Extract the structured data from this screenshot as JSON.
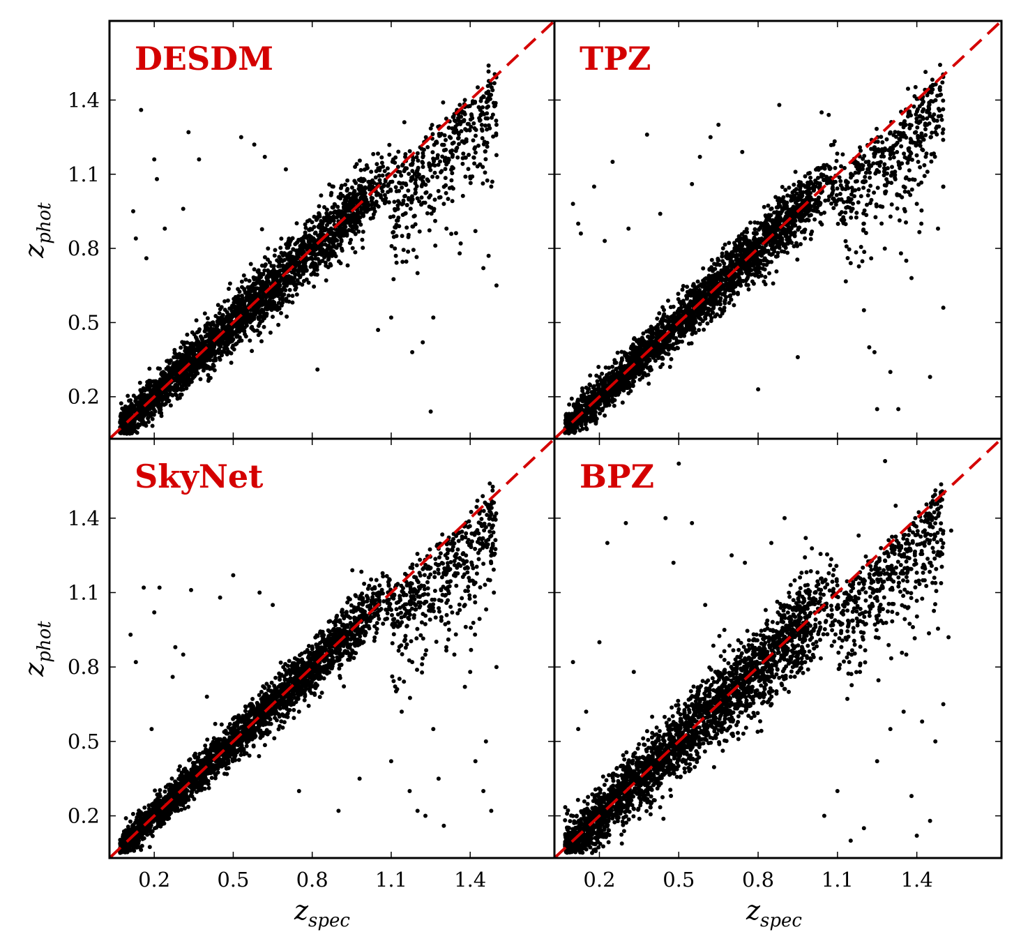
{
  "colors": {
    "points": "#000000",
    "identity_line": "#d40000",
    "title": "#d40000",
    "frame": "#000000"
  },
  "chart_data": [
    {
      "type": "scatter",
      "title": "DESDM",
      "xlabel": "z_spec",
      "ylabel": "z_phot",
      "xlim": [
        0.03,
        1.72
      ],
      "ylim": [
        0.03,
        1.72
      ],
      "xticks": [
        "0.2",
        "0.5",
        "0.8",
        "1.1",
        "1.4"
      ],
      "yticks": [
        "0.2",
        "0.5",
        "0.8",
        "1.1",
        "1.4"
      ],
      "show_xticklabels": false,
      "show_yticklabels": true,
      "show_xlabel": false,
      "show_ylabel": true,
      "reference_line": "y = x (dashed)",
      "points": {
        "scatter_sigma": 0.055,
        "count": 3200,
        "zmax": 1.5,
        "outliers": [
          [
            0.12,
            0.95
          ],
          [
            0.13,
            0.84
          ],
          [
            0.15,
            1.36
          ],
          [
            0.17,
            0.76
          ],
          [
            0.2,
            1.16
          ],
          [
            0.21,
            1.08
          ],
          [
            0.24,
            0.88
          ],
          [
            0.31,
            0.96
          ],
          [
            0.33,
            1.27
          ],
          [
            0.37,
            1.16
          ],
          [
            0.45,
            0.35
          ],
          [
            0.53,
            1.25
          ],
          [
            0.58,
            1.22
          ],
          [
            0.62,
            1.17
          ],
          [
            0.7,
            1.12
          ],
          [
            0.82,
            0.31
          ],
          [
            0.88,
            1.05
          ],
          [
            1.05,
            0.47
          ],
          [
            1.1,
            0.52
          ],
          [
            1.15,
            1.31
          ],
          [
            1.18,
            0.38
          ],
          [
            1.22,
            0.42
          ],
          [
            1.25,
            0.14
          ],
          [
            1.26,
            0.52
          ],
          [
            1.3,
            0.98
          ],
          [
            1.35,
            1.36
          ],
          [
            1.38,
            1.4
          ],
          [
            1.42,
            0.87
          ],
          [
            1.45,
            0.72
          ],
          [
            1.47,
            0.77
          ],
          [
            1.48,
            1.05
          ],
          [
            1.5,
            0.65
          ],
          [
            1.36,
            0.78
          ],
          [
            1.31,
            0.88
          ],
          [
            1.44,
            1.34
          ],
          [
            1.5,
            1.3
          ],
          [
            1.2,
            0.7
          ],
          [
            1.12,
            0.85
          ],
          [
            1.4,
            1.09
          ],
          [
            1.27,
            1.23
          ]
        ]
      }
    },
    {
      "type": "scatter",
      "title": "TPZ",
      "xlabel": "z_spec",
      "ylabel": "z_phot",
      "xlim": [
        0.03,
        1.72
      ],
      "ylim": [
        0.03,
        1.72
      ],
      "xticks": [
        "0.2",
        "0.5",
        "0.8",
        "1.1",
        "1.4"
      ],
      "yticks": [
        "0.2",
        "0.5",
        "0.8",
        "1.1",
        "1.4"
      ],
      "show_xticklabels": false,
      "show_yticklabels": false,
      "show_xlabel": false,
      "show_ylabel": false,
      "reference_line": "y = x (dashed)",
      "points": {
        "scatter_sigma": 0.05,
        "count": 3200,
        "zmax": 1.5,
        "outliers": [
          [
            0.1,
            0.98
          ],
          [
            0.12,
            0.9
          ],
          [
            0.13,
            0.86
          ],
          [
            0.18,
            1.05
          ],
          [
            0.22,
            0.83
          ],
          [
            0.25,
            1.15
          ],
          [
            0.31,
            0.88
          ],
          [
            0.38,
            1.26
          ],
          [
            0.43,
            0.94
          ],
          [
            0.55,
            1.06
          ],
          [
            0.58,
            1.17
          ],
          [
            0.62,
            1.25
          ],
          [
            0.65,
            1.3
          ],
          [
            0.74,
            1.19
          ],
          [
            0.8,
            0.23
          ],
          [
            0.88,
            1.38
          ],
          [
            0.95,
            0.36
          ],
          [
            1.04,
            1.35
          ],
          [
            1.12,
            1.18
          ],
          [
            1.15,
            0.74
          ],
          [
            1.2,
            0.55
          ],
          [
            1.22,
            0.4
          ],
          [
            1.24,
            0.38
          ],
          [
            1.25,
            0.15
          ],
          [
            1.3,
            0.3
          ],
          [
            1.33,
            0.15
          ],
          [
            1.36,
            0.75
          ],
          [
            1.38,
            0.68
          ],
          [
            1.45,
            0.28
          ],
          [
            1.47,
            1.27
          ],
          [
            1.48,
            0.88
          ],
          [
            1.5,
            0.56
          ],
          [
            1.5,
            1.05
          ],
          [
            1.42,
            1.2
          ],
          [
            1.35,
            1.05
          ],
          [
            1.28,
            1.12
          ],
          [
            1.2,
            0.9
          ],
          [
            1.4,
            0.98
          ],
          [
            1.34,
            0.78
          ],
          [
            1.44,
            1.11
          ]
        ]
      }
    },
    {
      "type": "scatter",
      "title": "SkyNet",
      "xlabel": "z_spec",
      "ylabel": "z_phot",
      "xlim": [
        0.03,
        1.72
      ],
      "ylim": [
        0.03,
        1.72
      ],
      "xticks": [
        "0.2",
        "0.5",
        "0.8",
        "1.1",
        "1.4"
      ],
      "yticks": [
        "0.2",
        "0.5",
        "0.8",
        "1.1",
        "1.4"
      ],
      "show_xticklabels": true,
      "show_yticklabels": true,
      "show_xlabel": true,
      "show_ylabel": true,
      "reference_line": "y = x (dashed)",
      "points": {
        "scatter_sigma": 0.045,
        "count": 3200,
        "zmax": 1.5,
        "outliers": [
          [
            0.11,
            0.93
          ],
          [
            0.13,
            0.82
          ],
          [
            0.16,
            1.12
          ],
          [
            0.19,
            0.55
          ],
          [
            0.2,
            1.02
          ],
          [
            0.22,
            1.12
          ],
          [
            0.27,
            0.76
          ],
          [
            0.28,
            0.88
          ],
          [
            0.31,
            0.85
          ],
          [
            0.34,
            1.11
          ],
          [
            0.4,
            0.68
          ],
          [
            0.45,
            1.08
          ],
          [
            0.5,
            1.17
          ],
          [
            0.6,
            1.1
          ],
          [
            0.65,
            1.05
          ],
          [
            0.75,
            0.3
          ],
          [
            0.9,
            0.22
          ],
          [
            0.98,
            0.35
          ],
          [
            1.1,
            0.42
          ],
          [
            1.14,
            0.62
          ],
          [
            1.17,
            0.3
          ],
          [
            1.2,
            0.22
          ],
          [
            1.23,
            0.2
          ],
          [
            1.26,
            0.55
          ],
          [
            1.28,
            0.35
          ],
          [
            1.3,
            0.16
          ],
          [
            1.34,
            0.85
          ],
          [
            1.38,
            0.72
          ],
          [
            1.4,
            0.78
          ],
          [
            1.42,
            0.42
          ],
          [
            1.45,
            0.3
          ],
          [
            1.46,
            0.5
          ],
          [
            1.48,
            0.22
          ],
          [
            1.5,
            0.8
          ],
          [
            1.49,
            1.1
          ],
          [
            1.35,
            1.2
          ],
          [
            1.25,
            1.03
          ],
          [
            1.42,
            1.14
          ],
          [
            1.32,
            0.95
          ],
          [
            1.18,
            0.82
          ]
        ]
      }
    },
    {
      "type": "scatter",
      "title": "BPZ",
      "xlabel": "z_spec",
      "ylabel": "z_phot",
      "xlim": [
        0.03,
        1.72
      ],
      "ylim": [
        0.03,
        1.72
      ],
      "xticks": [
        "0.2",
        "0.5",
        "0.8",
        "1.1",
        "1.4"
      ],
      "yticks": [
        "0.2",
        "0.5",
        "0.8",
        "1.1",
        "1.4"
      ],
      "show_xticklabels": true,
      "show_yticklabels": false,
      "show_xlabel": true,
      "show_ylabel": false,
      "reference_line": "y = x (dashed)",
      "points": {
        "scatter_sigma": 0.075,
        "count": 3200,
        "zmax": 1.5,
        "outliers": [
          [
            0.1,
            0.82
          ],
          [
            0.12,
            0.55
          ],
          [
            0.15,
            0.62
          ],
          [
            0.2,
            0.9
          ],
          [
            0.23,
            1.3
          ],
          [
            0.3,
            1.38
          ],
          [
            0.33,
            0.78
          ],
          [
            0.45,
            1.4
          ],
          [
            0.48,
            1.22
          ],
          [
            0.5,
            1.62
          ],
          [
            0.55,
            1.38
          ],
          [
            0.6,
            1.05
          ],
          [
            0.7,
            1.25
          ],
          [
            0.75,
            1.22
          ],
          [
            0.85,
            1.3
          ],
          [
            0.9,
            1.4
          ],
          [
            0.98,
            1.32
          ],
          [
            1.05,
            0.2
          ],
          [
            1.1,
            0.3
          ],
          [
            1.15,
            0.1
          ],
          [
            1.2,
            0.15
          ],
          [
            1.25,
            0.42
          ],
          [
            1.3,
            0.55
          ],
          [
            1.35,
            0.62
          ],
          [
            1.38,
            0.28
          ],
          [
            1.4,
            0.12
          ],
          [
            1.42,
            0.58
          ],
          [
            1.45,
            0.18
          ],
          [
            1.47,
            0.5
          ],
          [
            1.5,
            0.65
          ],
          [
            1.52,
            0.92
          ],
          [
            1.53,
            1.35
          ],
          [
            1.5,
            1.5
          ],
          [
            1.28,
            1.63
          ],
          [
            1.32,
            1.45
          ],
          [
            1.18,
            1.33
          ],
          [
            1.22,
            1.02
          ],
          [
            1.4,
            1.18
          ],
          [
            1.46,
            1.28
          ],
          [
            1.36,
            0.85
          ]
        ]
      }
    }
  ]
}
